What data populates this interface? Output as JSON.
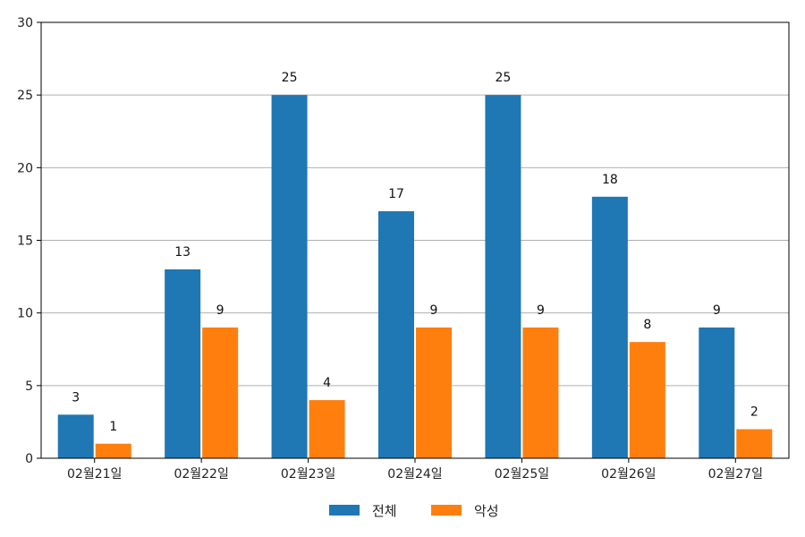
{
  "chart_data": {
    "type": "bar",
    "categories": [
      "02월21일",
      "02월22일",
      "02월23일",
      "02월24일",
      "02월25일",
      "02월26일",
      "02월27일"
    ],
    "series": [
      {
        "name": "전체",
        "color": "#1f77b4",
        "values": [
          3,
          13,
          25,
          17,
          25,
          18,
          9
        ]
      },
      {
        "name": "악성",
        "color": "#ff7f0e",
        "values": [
          1,
          9,
          4,
          9,
          9,
          8,
          2
        ]
      }
    ],
    "ylim": [
      0,
      30
    ],
    "yticks": [
      0,
      5,
      10,
      15,
      20,
      25,
      30
    ],
    "grid": "horizontal",
    "legend_position": "bottom-center",
    "data_labels": true
  }
}
